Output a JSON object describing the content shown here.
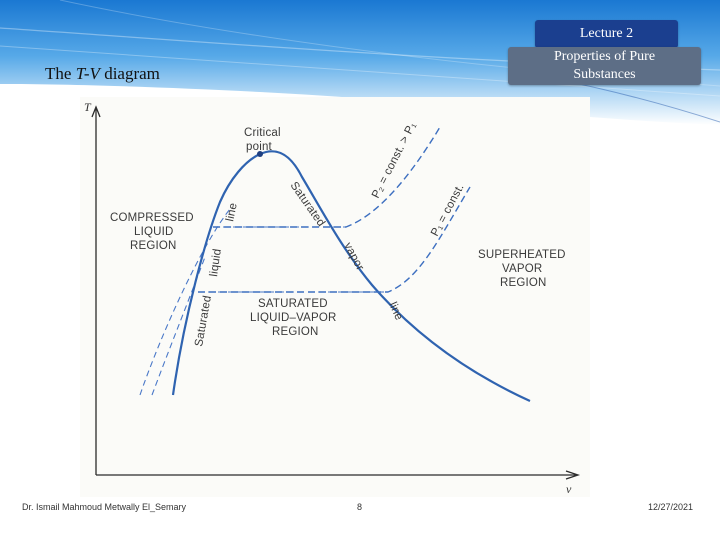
{
  "header": {
    "lecture_tag": "Lecture 2",
    "subject_tag_line1": "Properties of Pure",
    "subject_tag_line2": "Substances",
    "title_prefix": "The ",
    "title_symbol": "T-V",
    "title_suffix": " diagram"
  },
  "diagram": {
    "axis_y": "T",
    "axis_x": "v",
    "critical_point": [
      "Critical",
      "point"
    ],
    "compressed_region": [
      "COMPRESSED",
      "LIQUID",
      "REGION"
    ],
    "superheated_region": [
      "SUPERHEATED",
      "VAPOR",
      "REGION"
    ],
    "mixture_region": [
      "SATURATED",
      "LIQUID–VAPOR",
      "REGION"
    ],
    "sat_liquid_line": [
      "Saturated",
      "liquid",
      "line"
    ],
    "sat_vapor_line": [
      "Saturated",
      "vapor",
      "line"
    ],
    "isobar_high": "P₂ = const. > P₁",
    "isobar_low": "P₁ = const.",
    "colors": {
      "dome": "#2f63b0",
      "isobar": "#3d6fc0",
      "dashed_line": "#4a78c8",
      "axis": "#2b2b2b"
    }
  },
  "footer": {
    "author": "Dr. Ismail Mahmoud Metwally El_Semary",
    "page": "8",
    "date": "12/27/2021"
  },
  "theme": {
    "banner_blue": "#1f7fd6",
    "lecture_tag_bg": "#1b3f8f",
    "subject_tag_bg": "#5d6e86"
  }
}
